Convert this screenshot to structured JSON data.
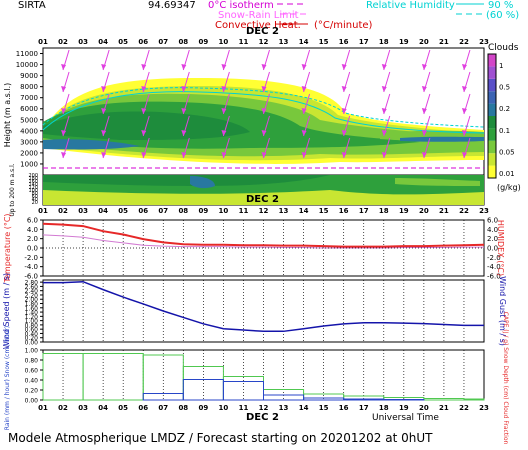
{
  "header": {
    "station": "SIRTA",
    "coords": "94.69347",
    "legend_zero_isotherm": "0°C isotherm",
    "legend_snow_rain": "Snow-Rain Limit",
    "legend_convective": "Convective Heat.",
    "legend_convective_units": "(°C/minute)",
    "legend_rh": "Relative Humidity",
    "legend_rh_90": "90 %",
    "legend_rh_60": "(60 %)"
  },
  "footer": {
    "universal_time": "Universal Time",
    "forecast": "Modele Atmospherique LMDZ / Forecast starting on 20201202 at 0hUT"
  },
  "date_label": "DEC 2",
  "hours": [
    "01",
    "02",
    "03",
    "04",
    "05",
    "06",
    "07",
    "08",
    "09",
    "10",
    "11",
    "12",
    "13",
    "14",
    "15",
    "16",
    "17",
    "18",
    "19",
    "20",
    "21",
    "22",
    "23"
  ],
  "colors": {
    "cloud_scale": [
      "#ffff33",
      "#c8e632",
      "#78c83c",
      "#2ea03c",
      "#1e8c3c",
      "#2878a0",
      "#3c64b4",
      "#5a50c8",
      "#a050d2",
      "#d246c8"
    ],
    "temperature": "#e62828",
    "humidex": "#d27ad2",
    "wind_speed": "#1414aa",
    "rain": "#50c850",
    "snow": "#2846c8"
  },
  "chart_data": [
    {
      "type": "heatmap",
      "name": "clouds",
      "ylabel": "Height (m a.s.l.)",
      "y_ticks": [
        1000,
        2000,
        3000,
        4000,
        5000,
        6000,
        7000,
        8000,
        9000,
        10000,
        11000
      ],
      "ylim": [
        0,
        11500
      ],
      "colorbar_title": "Clouds",
      "colorbar_units": "(g/kg)",
      "colorbar_ticks": [
        "1",
        "0.5",
        "0.2",
        "0.1",
        "0.05",
        "0.01"
      ]
    },
    {
      "type": "heatmap",
      "name": "low-levels",
      "ylabel": "Up to 200 m a.s.l.",
      "y_ticks": [
        10,
        20,
        30,
        40,
        50,
        60,
        70,
        80,
        90,
        100,
        110,
        120,
        130,
        140,
        150,
        160,
        170,
        180,
        190,
        200
      ]
    },
    {
      "type": "line",
      "name": "temperature",
      "ylabel": "Temperature (°C)",
      "y2label": "HUMIDEX (°C)",
      "y_ticks": [
        "-6.0",
        "-4.0",
        "-2.0",
        "0.0",
        "2.0",
        "4.0",
        "6.0"
      ],
      "ylim": [
        -6,
        6
      ],
      "x": [
        1,
        2,
        3,
        4,
        5,
        6,
        7,
        8,
        9,
        10,
        11,
        12,
        13,
        14,
        15,
        16,
        17,
        18,
        19,
        20,
        21,
        22,
        23
      ],
      "series": [
        {
          "name": "Temperature",
          "values": [
            5.2,
            5.0,
            4.7,
            3.6,
            2.9,
            1.9,
            1.2,
            0.8,
            0.7,
            0.7,
            0.6,
            0.6,
            0.5,
            0.5,
            0.4,
            0.3,
            0.3,
            0.3,
            0.4,
            0.4,
            0.5,
            0.6,
            0.7
          ]
        },
        {
          "name": "Humidex",
          "values": [
            2.8,
            2.6,
            2.3,
            1.6,
            1.1,
            0.6,
            0.4,
            0.3,
            0.3,
            0.3,
            0.2,
            0.2,
            0.1,
            0.1,
            0.0,
            0.0,
            0.0,
            0.0,
            0.1,
            0.1,
            0.1,
            0.2,
            0.2
          ]
        }
      ]
    },
    {
      "type": "line",
      "name": "wind",
      "ylabel": "Wind Speed (m / s)",
      "y2label": "Wind Gust (m / s)",
      "y_ticks": [
        "0.00",
        "0.20",
        "0.40",
        "0.60",
        "0.80",
        "1.00",
        "1.20",
        "1.40",
        "1.60",
        "1.80",
        "2.00",
        "2.20",
        "2.40",
        "2.60",
        "2.80"
      ],
      "ylim": [
        0,
        2.9
      ],
      "x": [
        1,
        2,
        3,
        4,
        5,
        6,
        7,
        8,
        9,
        10,
        11,
        12,
        13,
        14,
        15,
        16,
        17,
        18,
        19,
        20,
        21,
        22,
        23
      ],
      "series": [
        {
          "name": "Wind Speed",
          "values": [
            2.78,
            2.78,
            2.82,
            2.45,
            2.1,
            1.78,
            1.45,
            1.15,
            0.85,
            0.62,
            0.56,
            0.5,
            0.5,
            0.62,
            0.75,
            0.85,
            0.9,
            0.9,
            0.88,
            0.86,
            0.82,
            0.78,
            0.78
          ]
        }
      ]
    },
    {
      "type": "bar",
      "name": "precipitation",
      "ylabel": "Rain (mm / hour) Snow (cm / hour)",
      "y2label": "CAPE (J / g) Snow Depth (cm) Cloud Fraction",
      "y_ticks": [
        "0.00",
        "0.20",
        "0.40",
        "0.60",
        "0.80",
        "1.00"
      ],
      "ylim": [
        0,
        1.0
      ],
      "bins": [
        [
          1,
          3
        ],
        [
          3,
          6
        ],
        [
          6,
          8
        ],
        [
          8,
          10
        ],
        [
          10,
          12
        ],
        [
          12,
          14
        ],
        [
          14,
          16
        ],
        [
          16,
          18
        ],
        [
          18,
          20
        ],
        [
          20,
          22
        ],
        [
          22,
          23
        ]
      ],
      "series": [
        {
          "name": "Rain",
          "values": [
            0.93,
            0.93,
            0.9,
            0.67,
            0.47,
            0.21,
            0.12,
            0.08,
            0.05,
            0.03,
            0.02
          ]
        },
        {
          "name": "Snow",
          "values": [
            0.0,
            0.0,
            0.13,
            0.41,
            0.37,
            0.1,
            0.04,
            0.02,
            0.01,
            0.0,
            0.0
          ]
        }
      ]
    }
  ]
}
